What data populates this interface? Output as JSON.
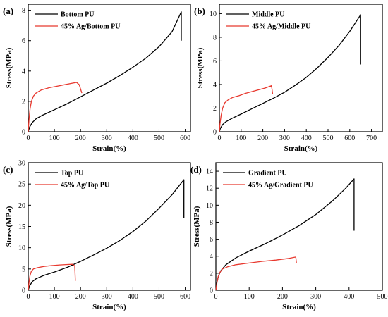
{
  "chart_data": [
    {
      "type": "line",
      "panel_label": "(a)",
      "xlabel": "Strain(%)",
      "ylabel": "Stress(MPa)",
      "xlim": [
        0,
        620
      ],
      "ylim": [
        0,
        8.4
      ],
      "xticks": [
        "0",
        "100",
        "200",
        "300",
        "400",
        "500",
        "600"
      ],
      "yticks": [
        "0",
        "2",
        "4",
        "6",
        "8"
      ],
      "legend_position": "top-left",
      "series": [
        {
          "name": "Bottom PU",
          "color": "#000000",
          "points": [
            [
              0,
              0
            ],
            [
              5,
              0.3
            ],
            [
              15,
              0.6
            ],
            [
              30,
              0.85
            ],
            [
              50,
              1.05
            ],
            [
              100,
              1.45
            ],
            [
              150,
              1.85
            ],
            [
              200,
              2.3
            ],
            [
              250,
              2.75
            ],
            [
              300,
              3.2
            ],
            [
              350,
              3.7
            ],
            [
              400,
              4.25
            ],
            [
              450,
              4.85
            ],
            [
              500,
              5.6
            ],
            [
              550,
              6.6
            ],
            [
              585,
              7.9
            ],
            [
              585,
              6.0
            ]
          ]
        },
        {
          "name": "45% Ag/Bottom PU",
          "color": "#e8392f",
          "points": [
            [
              0,
              0
            ],
            [
              3,
              0.8
            ],
            [
              7,
              1.5
            ],
            [
              12,
              2.0
            ],
            [
              20,
              2.35
            ],
            [
              30,
              2.55
            ],
            [
              50,
              2.75
            ],
            [
              80,
              2.9
            ],
            [
              110,
              3.0
            ],
            [
              140,
              3.1
            ],
            [
              170,
              3.2
            ],
            [
              185,
              3.25
            ],
            [
              195,
              3.1
            ],
            [
              205,
              2.55
            ]
          ]
        }
      ]
    },
    {
      "type": "line",
      "panel_label": "(b)",
      "xlabel": "Strain(%)",
      "ylabel": "Stress(MPa)",
      "xlim": [
        0,
        750
      ],
      "ylim": [
        0,
        10.8
      ],
      "xticks": [
        "0",
        "100",
        "200",
        "300",
        "400",
        "500",
        "600",
        "700"
      ],
      "yticks": [
        "0",
        "2",
        "4",
        "6",
        "8",
        "10"
      ],
      "legend_position": "top-left",
      "series": [
        {
          "name": "Middle PU",
          "color": "#000000",
          "points": [
            [
              0,
              0
            ],
            [
              5,
              0.3
            ],
            [
              15,
              0.6
            ],
            [
              30,
              0.85
            ],
            [
              60,
              1.15
            ],
            [
              100,
              1.5
            ],
            [
              150,
              1.95
            ],
            [
              200,
              2.4
            ],
            [
              250,
              2.85
            ],
            [
              300,
              3.35
            ],
            [
              350,
              3.95
            ],
            [
              400,
              4.6
            ],
            [
              450,
              5.4
            ],
            [
              500,
              6.3
            ],
            [
              550,
              7.3
            ],
            [
              600,
              8.5
            ],
            [
              650,
              9.9
            ],
            [
              650,
              5.7
            ]
          ]
        },
        {
          "name": "45% Ag/Middle PU",
          "color": "#e8392f",
          "points": [
            [
              0,
              0
            ],
            [
              3,
              0.7
            ],
            [
              8,
              1.4
            ],
            [
              15,
              2.0
            ],
            [
              25,
              2.45
            ],
            [
              40,
              2.7
            ],
            [
              60,
              2.9
            ],
            [
              90,
              3.05
            ],
            [
              120,
              3.25
            ],
            [
              150,
              3.4
            ],
            [
              180,
              3.55
            ],
            [
              210,
              3.7
            ],
            [
              240,
              3.9
            ],
            [
              245,
              3.2
            ]
          ]
        }
      ]
    },
    {
      "type": "line",
      "panel_label": "(c)",
      "xlabel": "Strain(%)",
      "ylabel": "Stress(MPa)",
      "xlim": [
        0,
        620
      ],
      "ylim": [
        0,
        30
      ],
      "xticks": [
        "0",
        "100",
        "200",
        "300",
        "400",
        "500",
        "600"
      ],
      "yticks": [
        "0",
        "5",
        "10",
        "15",
        "20",
        "25",
        "30"
      ],
      "legend_position": "top-left",
      "series": [
        {
          "name": "Top PU",
          "color": "#000000",
          "points": [
            [
              0,
              0
            ],
            [
              5,
              1.0
            ],
            [
              15,
              2.0
            ],
            [
              30,
              2.7
            ],
            [
              60,
              3.5
            ],
            [
              100,
              4.3
            ],
            [
              150,
              5.4
            ],
            [
              200,
              6.8
            ],
            [
              250,
              8.3
            ],
            [
              300,
              9.9
            ],
            [
              350,
              11.7
            ],
            [
              400,
              13.8
            ],
            [
              450,
              16.3
            ],
            [
              500,
              19.3
            ],
            [
              550,
              22.5
            ],
            [
              595,
              26.0
            ],
            [
              595,
              17.0
            ]
          ]
        },
        {
          "name": "45% Ag/Top PU",
          "color": "#e8392f",
          "points": [
            [
              0,
              0
            ],
            [
              3,
              1.8
            ],
            [
              7,
              3.5
            ],
            [
              12,
              4.5
            ],
            [
              20,
              5.0
            ],
            [
              35,
              5.3
            ],
            [
              60,
              5.6
            ],
            [
              90,
              5.8
            ],
            [
              120,
              5.95
            ],
            [
              150,
              6.05
            ],
            [
              170,
              6.1
            ],
            [
              178,
              5.7
            ],
            [
              180,
              2.2
            ]
          ]
        }
      ]
    },
    {
      "type": "line",
      "panel_label": "(d)",
      "xlabel": "Strain(%)",
      "ylabel": "Stress(MPa)",
      "xlim": [
        0,
        500
      ],
      "ylim": [
        0,
        15
      ],
      "xticks": [
        "0",
        "100",
        "200",
        "300",
        "400",
        "500"
      ],
      "yticks": [
        "0",
        "2",
        "4",
        "6",
        "8",
        "10",
        "12",
        "14"
      ],
      "legend_position": "top-left",
      "series": [
        {
          "name": "Gradient PU",
          "color": "#000000",
          "points": [
            [
              0,
              0
            ],
            [
              3,
              0.9
            ],
            [
              8,
              1.7
            ],
            [
              15,
              2.3
            ],
            [
              30,
              3.0
            ],
            [
              60,
              3.8
            ],
            [
              100,
              4.6
            ],
            [
              150,
              5.5
            ],
            [
              200,
              6.5
            ],
            [
              250,
              7.6
            ],
            [
              300,
              8.9
            ],
            [
              350,
              10.5
            ],
            [
              390,
              12.0
            ],
            [
              415,
              13.1
            ],
            [
              415,
              7.0
            ]
          ]
        },
        {
          "name": "45% Ag/Gradient PU",
          "color": "#e8392f",
          "points": [
            [
              0,
              0
            ],
            [
              3,
              0.8
            ],
            [
              7,
              1.6
            ],
            [
              12,
              2.1
            ],
            [
              20,
              2.5
            ],
            [
              35,
              2.75
            ],
            [
              60,
              3.0
            ],
            [
              100,
              3.2
            ],
            [
              140,
              3.4
            ],
            [
              180,
              3.55
            ],
            [
              220,
              3.75
            ],
            [
              240,
              3.9
            ],
            [
              242,
              3.2
            ]
          ]
        }
      ]
    }
  ]
}
